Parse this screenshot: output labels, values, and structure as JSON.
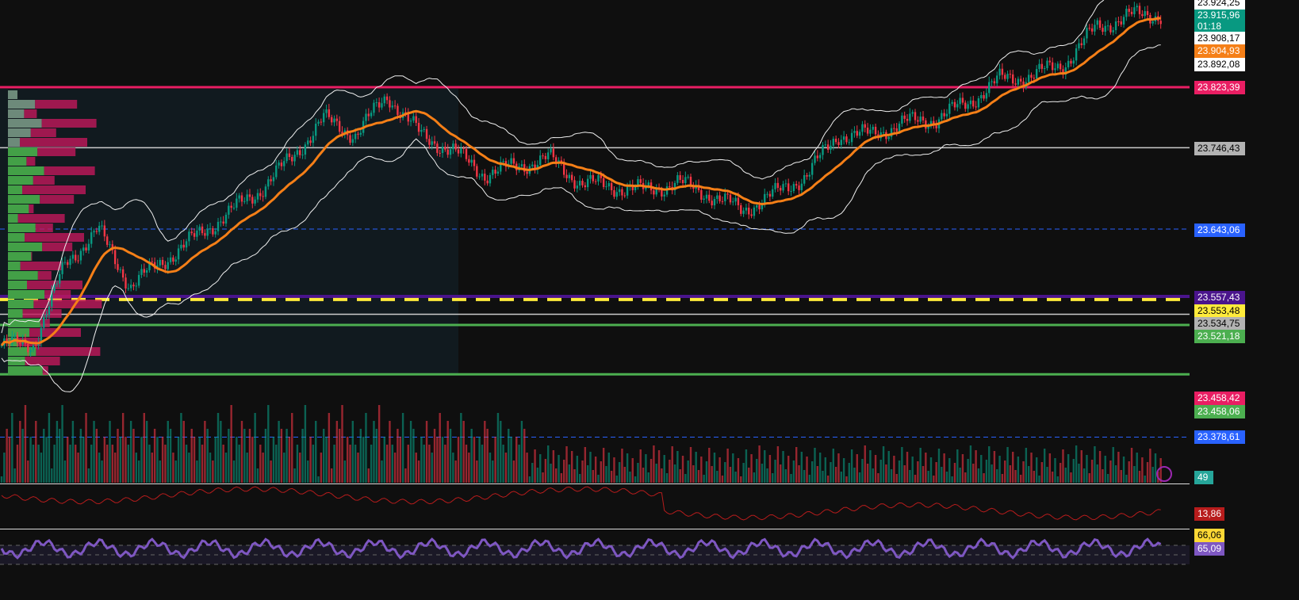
{
  "chart_data": {
    "type": "candlestick",
    "ylim": [
      23440,
      23930
    ],
    "closes": [
      23495,
      23497,
      23600,
      23642,
      23571,
      23602,
      23632,
      23662,
      23692,
      23733,
      23783,
      23763,
      23813,
      23763,
      23743,
      23713,
      23723,
      23733,
      23702,
      23697,
      23692,
      23702,
      23687,
      23667,
      23687,
      23712,
      23763,
      23763,
      23778,
      23783,
      23803,
      23833,
      23838,
      23853,
      23899,
      23914,
      23916
    ],
    "price_axis": [
      {
        "value": "23.924,25",
        "bg": "#ffffff",
        "fg": "#000000"
      },
      {
        "value": "23.915,96",
        "bg": "#089981",
        "fg": "#ffffff",
        "countdown": "01:18"
      },
      {
        "value": "23.908,17",
        "bg": "#ffffff",
        "fg": "#000000"
      },
      {
        "value": "23.904,93",
        "bg": "#f57f17",
        "fg": "#ffffff"
      },
      {
        "value": "23.892,08",
        "bg": "#ffffff",
        "fg": "#000000"
      },
      {
        "value": "23.823,39",
        "bg": "#e91e63",
        "fg": "#ffffff"
      },
      {
        "value": "23.746,43",
        "bg": "#b2b2b2",
        "fg": "#000000"
      },
      {
        "value": "23.643,06",
        "bg": "#2962ff",
        "fg": "#ffffff"
      },
      {
        "value": "23.557,43",
        "bg": "#4a148c",
        "fg": "#ffffff"
      },
      {
        "value": "23.553,48",
        "bg": "#ffeb3b",
        "fg": "#000000"
      },
      {
        "value": "23.534,75",
        "bg": "#b2b2b2",
        "fg": "#000000"
      },
      {
        "value": "23.521,18",
        "bg": "#4caf50",
        "fg": "#ffffff"
      },
      {
        "value": "23.458,42",
        "bg": "#e91e63",
        "fg": "#ffffff"
      },
      {
        "value": "23.458,06",
        "bg": "#4caf50",
        "fg": "#ffffff"
      },
      {
        "value": "23.378,61",
        "bg": "#2962ff",
        "fg": "#ffffff"
      }
    ],
    "volume_value": "49",
    "indicator2_value": "13,86",
    "rsi_value": "65,09",
    "rsi_ma_value": "66,06",
    "colors": {
      "up": "#089981",
      "down": "#f23645",
      "ma": "#f57f17",
      "rsi": "#7e57c2"
    }
  }
}
